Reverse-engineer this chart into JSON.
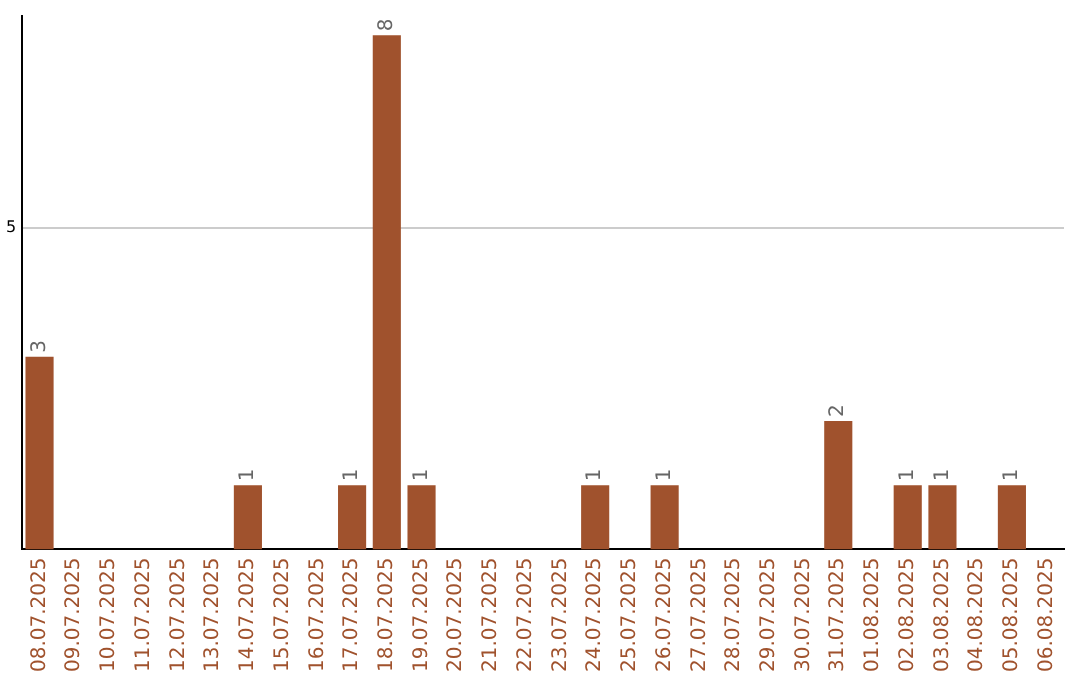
{
  "chart_data": {
    "type": "bar",
    "categories": [
      "08.07.2025",
      "09.07.2025",
      "10.07.2025",
      "11.07.2025",
      "12.07.2025",
      "13.07.2025",
      "14.07.2025",
      "15.07.2025",
      "16.07.2025",
      "17.07.2025",
      "18.07.2025",
      "19.07.2025",
      "20.07.2025",
      "21.07.2025",
      "22.07.2025",
      "23.07.2025",
      "24.07.2025",
      "25.07.2025",
      "26.07.2025",
      "27.07.2025",
      "28.07.2025",
      "29.07.2025",
      "30.07.2025",
      "31.07.2025",
      "01.08.2025",
      "02.08.2025",
      "03.08.2025",
      "04.08.2025",
      "05.08.2025",
      "06.08.2025"
    ],
    "values": [
      3,
      0,
      0,
      0,
      0,
      0,
      1,
      0,
      0,
      1,
      8,
      1,
      0,
      0,
      0,
      0,
      1,
      0,
      1,
      0,
      0,
      0,
      0,
      2,
      0,
      1,
      1,
      0,
      1,
      0
    ],
    "value_labels": [
      "3",
      null,
      null,
      null,
      null,
      null,
      "1",
      null,
      null,
      "1",
      "8",
      "1",
      null,
      null,
      null,
      null,
      "1",
      null,
      "1",
      null,
      null,
      null,
      null,
      "2",
      null,
      "1",
      "1",
      null,
      "1",
      null
    ],
    "color": "#a0522d",
    "ylim": [
      0,
      8.3
    ],
    "yticks": [
      5
    ],
    "grid": "y",
    "legend": false
  }
}
